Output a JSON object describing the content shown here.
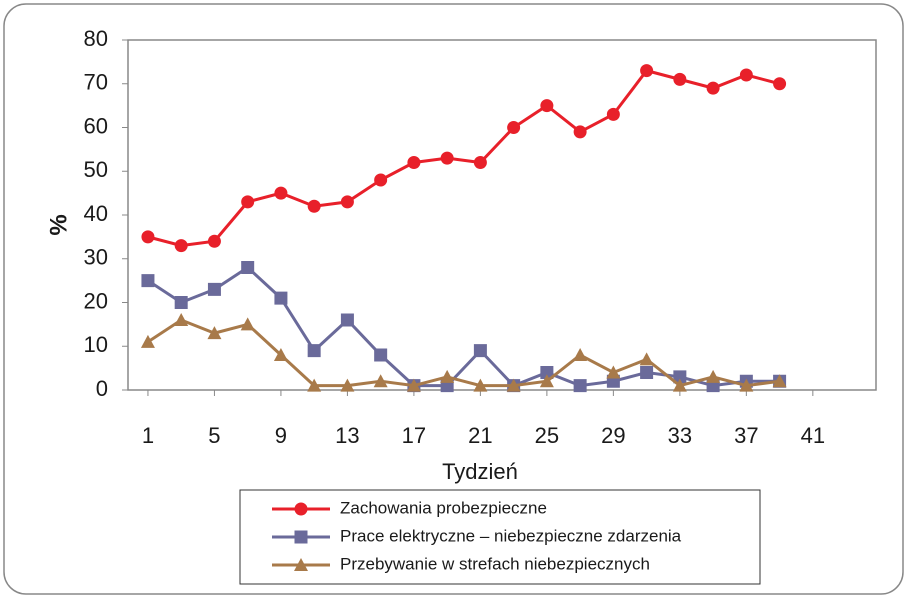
{
  "chart_data": {
    "type": "line",
    "x_label": "Tydzień",
    "y_label": "%",
    "x": [
      1,
      3,
      5,
      7,
      9,
      11,
      13,
      15,
      17,
      19,
      21,
      23,
      25,
      27,
      29,
      31,
      33,
      35,
      37,
      39
    ],
    "series": [
      {
        "name": "Zachowania probezpieczne",
        "color": "#e8202a",
        "marker": "circle",
        "values": [
          35,
          33,
          34,
          43,
          45,
          42,
          43,
          48,
          52,
          53,
          52,
          60,
          65,
          59,
          63,
          73,
          71,
          69,
          72,
          70
        ]
      },
      {
        "name": "Prace elektryczne – niebezpieczne zdarzenia",
        "color": "#6a6a9a",
        "marker": "square",
        "values": [
          25,
          20,
          23,
          28,
          21,
          9,
          16,
          8,
          1,
          1,
          9,
          1,
          4,
          1,
          2,
          4,
          3,
          1,
          2,
          2
        ]
      },
      {
        "name": "Przebywanie w strefach niebezpiecznych",
        "color": "#a87a4a",
        "marker": "triangle",
        "values": [
          11,
          16,
          13,
          15,
          8,
          1,
          1,
          2,
          1,
          3,
          1,
          1,
          2,
          8,
          4,
          7,
          1,
          3,
          1,
          2
        ]
      }
    ],
    "xlim": [
      -0.2,
      44.8
    ],
    "xticks": [
      1,
      5,
      9,
      13,
      17,
      21,
      25,
      29,
      33,
      37,
      41
    ],
    "ylim": [
      0,
      80
    ],
    "yticks": [
      0,
      10,
      20,
      30,
      40,
      50,
      60,
      70,
      80
    ]
  }
}
